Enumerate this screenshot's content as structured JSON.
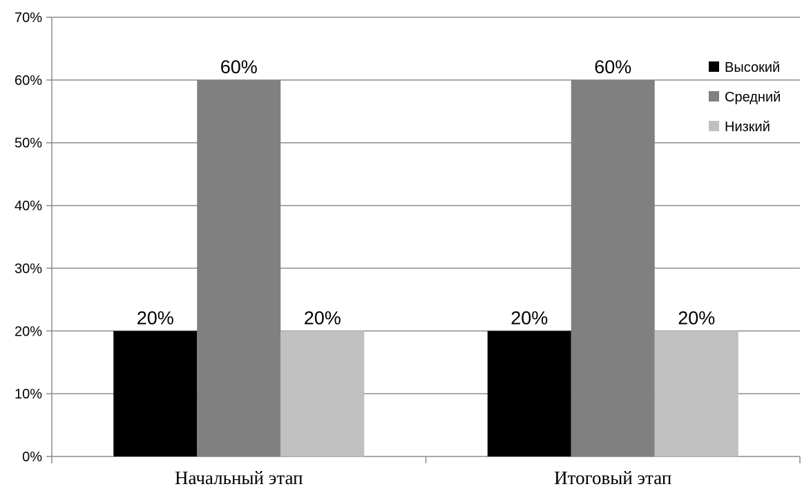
{
  "chart_data": {
    "type": "bar",
    "categories": [
      "Начальный этап",
      "Итоговый этап"
    ],
    "series": [
      {
        "name": "Высокий",
        "values": [
          20,
          20
        ],
        "color": "#000000"
      },
      {
        "name": "Средний",
        "values": [
          60,
          60
        ],
        "color": "#808080"
      },
      {
        "name": "Низкий",
        "values": [
          20,
          20
        ],
        "color": "#c0c0c0"
      }
    ],
    "ylim": [
      0,
      70
    ],
    "yticks": [
      0,
      10,
      20,
      30,
      40,
      50,
      60,
      70
    ],
    "value_format": "percent",
    "grid": true,
    "legend_position": "right",
    "data_labels": true,
    "title": "",
    "xlabel": "",
    "ylabel": ""
  }
}
